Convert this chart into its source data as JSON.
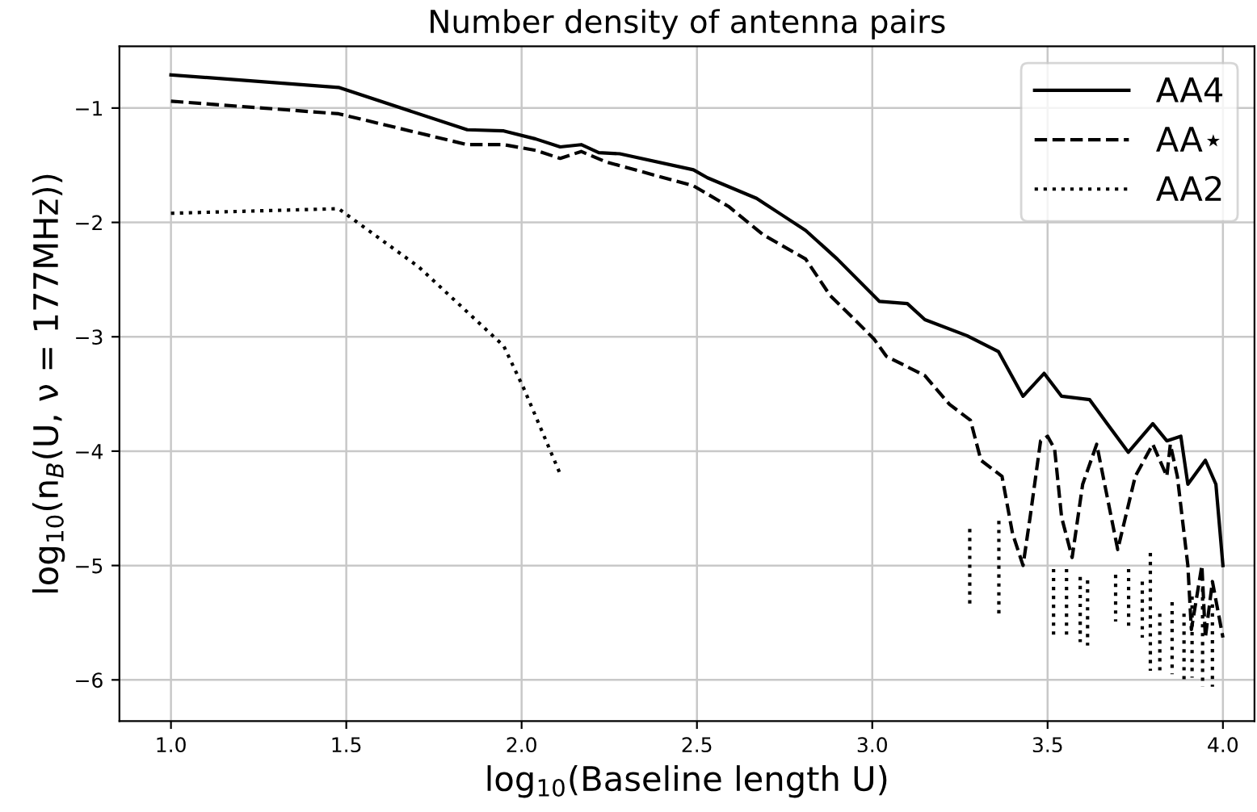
{
  "chart_data": {
    "type": "line",
    "title": "Number density of antenna pairs",
    "xlabel": "log$_{10}$(Baseline length U)",
    "ylabel": "log$_{10}$(n$_{B}$(U, ν = 177MHz))",
    "xlim": [
      0.853,
      4.09
    ],
    "ylim": [
      -6.36,
      -0.46
    ],
    "xticks": [
      {
        "value": 1.0,
        "label": "1.0"
      },
      {
        "value": 1.5,
        "label": "1.5"
      },
      {
        "value": 2.0,
        "label": "2.0"
      },
      {
        "value": 2.5,
        "label": "2.5"
      },
      {
        "value": 3.0,
        "label": "3.0"
      },
      {
        "value": 3.5,
        "label": "3.5"
      },
      {
        "value": 4.0,
        "label": "4.0"
      }
    ],
    "yticks": [
      {
        "value": -6,
        "label": "−6"
      },
      {
        "value": -5,
        "label": "−5"
      },
      {
        "value": -4,
        "label": "−4"
      },
      {
        "value": -3,
        "label": "−3"
      },
      {
        "value": -2,
        "label": "−2"
      },
      {
        "value": -1,
        "label": "−1"
      }
    ],
    "grid": true,
    "legend": "top right",
    "series": [
      {
        "name": "AA4",
        "color": "#000000",
        "line_style": "solid",
        "x": [
          1.0,
          1.478,
          1.845,
          1.949,
          2.04,
          2.11,
          2.17,
          2.22,
          2.28,
          2.49,
          2.53,
          2.67,
          2.74,
          2.81,
          2.9,
          3.02,
          3.1,
          3.15,
          3.27,
          3.36,
          3.43,
          3.49,
          3.54,
          3.62,
          3.67,
          3.73,
          3.8,
          3.84,
          3.88,
          3.9,
          3.95,
          3.98,
          4.0
        ],
        "values": [
          -0.71,
          -0.82,
          -1.19,
          -1.2,
          -1.27,
          -1.34,
          -1.32,
          -1.39,
          -1.4,
          -1.54,
          -1.61,
          -1.79,
          -1.93,
          -2.07,
          -2.32,
          -2.69,
          -2.71,
          -2.85,
          -2.99,
          -3.13,
          -3.52,
          -3.32,
          -3.52,
          -3.55,
          -3.76,
          -4.01,
          -3.76,
          -3.91,
          -3.87,
          -4.29,
          -4.08,
          -4.29,
          -5.0
        ]
      },
      {
        "name": "AA⋆",
        "color": "#000000",
        "line_style": "dashed",
        "x": [
          1.0,
          1.478,
          1.845,
          1.949,
          2.04,
          2.11,
          2.17,
          2.24,
          2.49,
          2.59,
          2.69,
          2.81,
          2.88,
          2.95,
          3.005,
          3.04,
          3.15,
          3.22,
          3.28,
          3.31,
          3.37,
          3.4,
          3.43,
          3.45,
          3.48,
          3.5,
          3.52,
          3.54,
          3.57,
          3.6,
          3.64,
          3.7,
          3.75,
          3.8,
          3.84,
          3.85,
          3.87,
          3.9,
          3.91,
          3.94,
          3.95,
          3.97,
          4.0
        ],
        "values": [
          -0.94,
          -1.05,
          -1.32,
          -1.32,
          -1.37,
          -1.44,
          -1.38,
          -1.47,
          -1.68,
          -1.86,
          -2.11,
          -2.32,
          -2.64,
          -2.85,
          -3.02,
          -3.17,
          -3.34,
          -3.59,
          -3.73,
          -4.08,
          -4.22,
          -4.72,
          -5.0,
          -4.58,
          -3.91,
          -3.87,
          -3.98,
          -4.58,
          -4.93,
          -4.29,
          -3.94,
          -4.86,
          -4.22,
          -3.94,
          -4.22,
          -3.94,
          -4.22,
          -5.0,
          -5.56,
          -5.0,
          -5.63,
          -5.14,
          -5.63
        ]
      },
      {
        "name": "AA2",
        "color": "#000000",
        "line_style": "dotted",
        "x": [
          1.0,
          1.478,
          1.707,
          1.949,
          2.006,
          2.11,
          2.5,
          3.278,
          3.278,
          3.3,
          3.361,
          3.361,
          3.4,
          3.517,
          3.517,
          3.53,
          3.554,
          3.554,
          3.57,
          3.593,
          3.593,
          3.6,
          3.614,
          3.614,
          3.65,
          3.694,
          3.694,
          3.71,
          3.731,
          3.731,
          3.75,
          3.77,
          3.77,
          3.78,
          3.793,
          3.793,
          3.81,
          3.82,
          3.82,
          3.84,
          3.855,
          3.855,
          3.87,
          3.889,
          3.889,
          3.9,
          3.912,
          3.912,
          3.93,
          3.942,
          3.942,
          3.96,
          3.97,
          3.97
        ],
        "values": [
          -1.92,
          -1.88,
          -2.39,
          -3.08,
          -3.45,
          -4.2,
          null,
          -4.68,
          -5.37,
          null,
          -4.61,
          -5.46,
          null,
          -5.03,
          -5.62,
          null,
          -5.03,
          -5.63,
          null,
          -5.1,
          -5.67,
          null,
          -5.13,
          -5.7,
          null,
          -5.08,
          -5.49,
          null,
          -5.03,
          -5.56,
          null,
          -5.14,
          -5.63,
          null,
          -4.89,
          -5.92,
          null,
          -5.42,
          -5.92,
          null,
          -5.32,
          -5.95,
          null,
          -5.42,
          -6.02,
          null,
          -5.27,
          -5.98,
          null,
          -5.2,
          -6.06,
          null,
          -5.34,
          -6.06
        ]
      }
    ]
  }
}
